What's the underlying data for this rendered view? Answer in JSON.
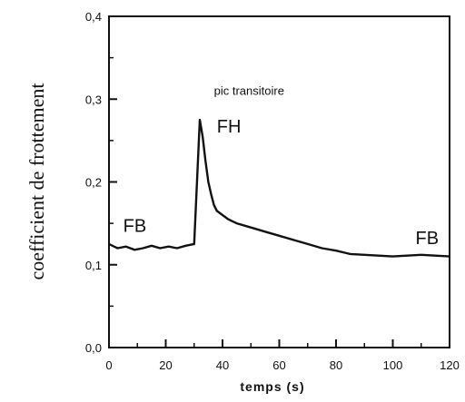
{
  "chart_data": {
    "type": "line",
    "xlabel": "temps (s)",
    "ylabel": "coefficient de frottement",
    "xlim": [
      0,
      120
    ],
    "ylim": [
      0.0,
      0.4
    ],
    "x_ticks": [
      "0",
      "20",
      "40",
      "60",
      "80",
      "100",
      "120"
    ],
    "y_ticks": [
      "0,0",
      "0,1",
      "0,2",
      "0,3",
      "0,4"
    ],
    "grid": false,
    "series": [
      {
        "x": [
          0,
          3,
          6,
          9,
          12,
          15,
          18,
          21,
          24,
          27,
          30,
          31,
          32,
          33,
          34,
          35,
          36,
          37,
          38,
          40,
          42,
          45,
          50,
          55,
          60,
          65,
          70,
          75,
          80,
          85,
          90,
          95,
          100,
          105,
          110,
          115,
          120
        ],
        "y": [
          0.125,
          0.12,
          0.122,
          0.118,
          0.12,
          0.123,
          0.12,
          0.122,
          0.12,
          0.123,
          0.125,
          0.2,
          0.275,
          0.255,
          0.225,
          0.2,
          0.185,
          0.172,
          0.165,
          0.16,
          0.155,
          0.15,
          0.145,
          0.14,
          0.135,
          0.13,
          0.125,
          0.12,
          0.117,
          0.113,
          0.112,
          0.111,
          0.11,
          0.111,
          0.112,
          0.111,
          0.11
        ]
      }
    ],
    "annotations": [
      {
        "text": "pic transitoire",
        "x": 37,
        "y": 0.305,
        "size": "small"
      },
      {
        "text": "FH",
        "x": 38,
        "y": 0.26,
        "size": "large"
      },
      {
        "text": "FB",
        "x": 5,
        "y": 0.14,
        "size": "large"
      },
      {
        "text": "FB",
        "x": 108,
        "y": 0.125,
        "size": "large"
      }
    ]
  }
}
